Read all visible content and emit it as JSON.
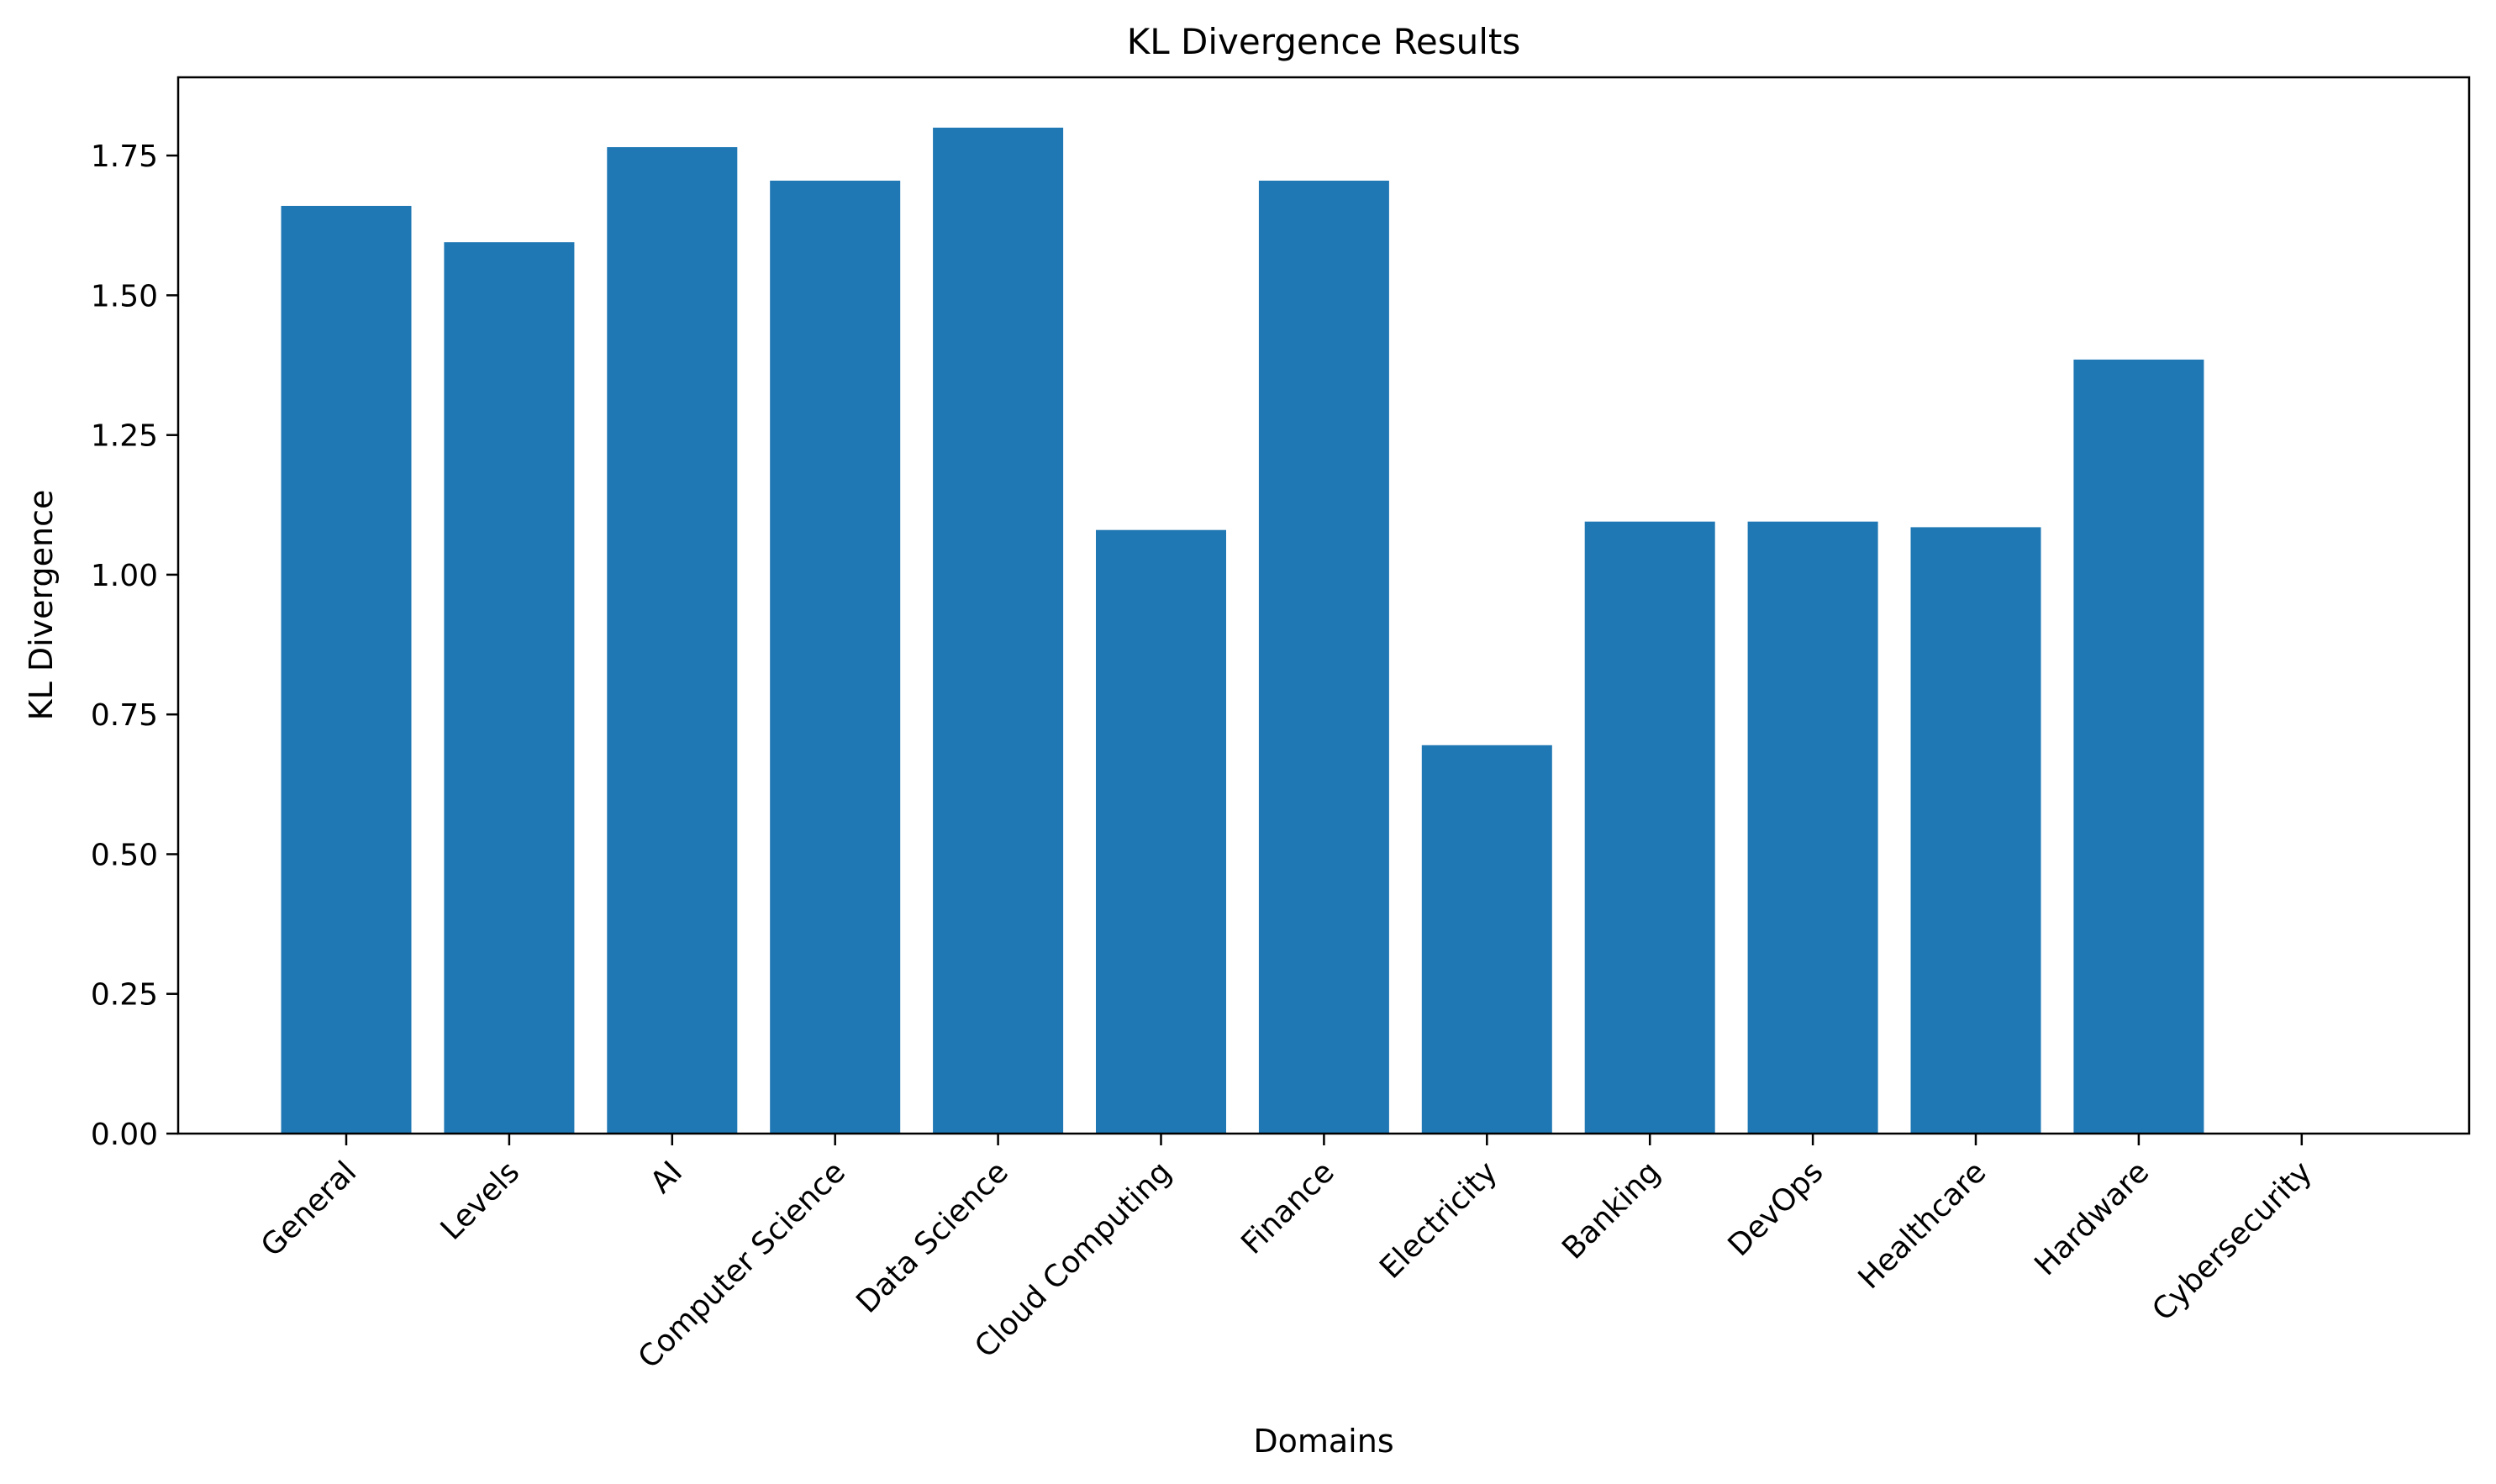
{
  "chart_data": {
    "type": "bar",
    "title": "KL Divergence Results",
    "xlabel": "Domains",
    "ylabel": "KL Divergence",
    "categories": [
      "General",
      "Levels",
      "AI",
      "Computer Science",
      "Data Science",
      "Cloud Computing",
      "Finance",
      "Electricity",
      "Banking",
      "DevOps",
      "Healthcare",
      "Hardware",
      "Cybersecurity"
    ],
    "values": [
      1.66,
      1.595,
      1.765,
      1.705,
      1.8,
      1.08,
      1.705,
      0.695,
      1.095,
      1.095,
      1.085,
      1.385,
      0.0
    ],
    "ylim": [
      0,
      1.89
    ],
    "yticks": [
      "0.00",
      "0.25",
      "0.50",
      "0.75",
      "1.00",
      "1.25",
      "1.50",
      "1.75"
    ],
    "bar_color": "#1f77b4",
    "grid": false,
    "legend": "none"
  }
}
